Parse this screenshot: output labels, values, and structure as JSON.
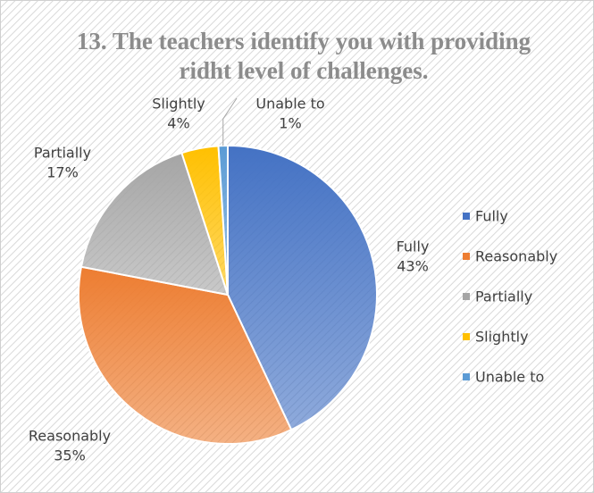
{
  "chart_data": {
    "type": "pie",
    "title": "13. The teachers identify you with providing ridht level of challenges.",
    "categories": [
      "Fully",
      "Reasonably",
      "Partially",
      "Slightly",
      "Unable to"
    ],
    "values": [
      43,
      35,
      17,
      4,
      1
    ],
    "value_labels": [
      "43%",
      "35%",
      "17%",
      "4%",
      "1%"
    ],
    "colors": [
      "#4472c4",
      "#ed7d31",
      "#a5a5a5",
      "#ffc000",
      "#5b9bd5"
    ],
    "legend": "right"
  }
}
